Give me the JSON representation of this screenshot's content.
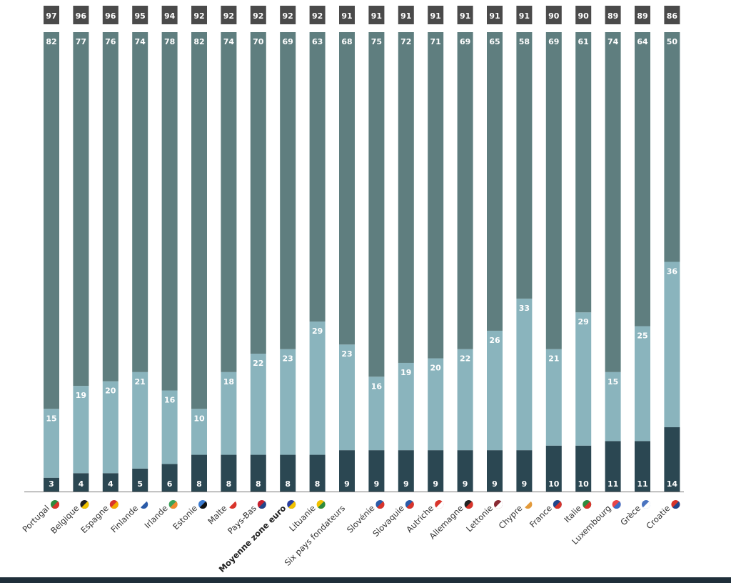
{
  "chart_data": {
    "type": "bar",
    "stacked": true,
    "title": "",
    "xlabel": "",
    "ylabel": "",
    "ylim": [
      0,
      100
    ],
    "grid": false,
    "legend": "none",
    "categories": [
      "Portugal",
      "Belgique",
      "Espagne",
      "Finlande",
      "Irlande",
      "Estonie",
      "Malte",
      "Pays-Bas",
      "Moyenne zone euro",
      "Lituanie",
      "Six pays fondateurs",
      "Slovénie",
      "Slovaquie",
      "Autriche",
      "Allemagne",
      "Lettonie",
      "Chypre",
      "France",
      "Italie",
      "Luxembourg",
      "Grèce",
      "Croatie"
    ],
    "highlighted_category": "Moyenne zone euro",
    "totals": [
      97,
      96,
      96,
      95,
      94,
      92,
      92,
      92,
      92,
      92,
      91,
      91,
      91,
      91,
      91,
      91,
      91,
      90,
      90,
      89,
      89,
      86
    ],
    "series": [
      {
        "name": "bottom",
        "color": "#2b4752",
        "values": [
          3,
          4,
          4,
          5,
          6,
          8,
          8,
          8,
          8,
          8,
          9,
          9,
          9,
          9,
          9,
          9,
          9,
          10,
          10,
          11,
          11,
          14
        ]
      },
      {
        "name": "middle",
        "color": "#8ab4bd",
        "values": [
          15,
          19,
          20,
          21,
          16,
          10,
          18,
          22,
          23,
          29,
          23,
          16,
          19,
          20,
          22,
          26,
          33,
          21,
          29,
          15,
          25,
          36
        ]
      },
      {
        "name": "top",
        "color": "#5f7e7f",
        "values": [
          82,
          77,
          76,
          74,
          78,
          82,
          74,
          70,
          69,
          63,
          68,
          75,
          72,
          71,
          69,
          65,
          58,
          69,
          61,
          74,
          64,
          50
        ]
      }
    ],
    "total_box_color": "#4a4a4a",
    "flag_icons": [
      "portugal-flag",
      "belgium-flag",
      "spain-flag",
      "finland-flag",
      "ireland-flag",
      "estonia-flag",
      "malta-flag",
      "netherlands-flag",
      "euro-flag",
      "lithuania-flag",
      "",
      "slovenia-flag",
      "slovakia-flag",
      "austria-flag",
      "germany-flag",
      "latvia-flag",
      "cyprus-flag",
      "france-flag",
      "italy-flag",
      "luxembourg-flag",
      "greece-flag",
      "croatia-flag"
    ],
    "flag_colors": [
      [
        "#2e8b3e",
        "#d9342b"
      ],
      [
        "#222222",
        "#f2c200"
      ],
      [
        "#d9342b",
        "#f2a900"
      ],
      [
        "#ffffff",
        "#2a5ba8"
      ],
      [
        "#3aa35a",
        "#f28a2e"
      ],
      [
        "#3b7bd1",
        "#111111"
      ],
      [
        "#ffffff",
        "#d9342b"
      ],
      [
        "#c8202f",
        "#21468b"
      ],
      [
        "#2a3fa0",
        "#f2c200"
      ],
      [
        "#f2c200",
        "#2e8b3e"
      ],
      null,
      [
        "#2a5ba8",
        "#d9342b"
      ],
      [
        "#2a5ba8",
        "#d9342b"
      ],
      [
        "#d9342b",
        "#ffffff"
      ],
      [
        "#222222",
        "#d9342b"
      ],
      [
        "#8a2a33",
        "#ffffff"
      ],
      [
        "#ffffff",
        "#e39a3b"
      ],
      [
        "#21468b",
        "#d9342b"
      ],
      [
        "#2e8b3e",
        "#d9342b"
      ],
      [
        "#e8454a",
        "#3a6ec8"
      ],
      [
        "#4a74c0",
        "#ffffff"
      ],
      [
        "#d9342b",
        "#21468b"
      ]
    ]
  }
}
